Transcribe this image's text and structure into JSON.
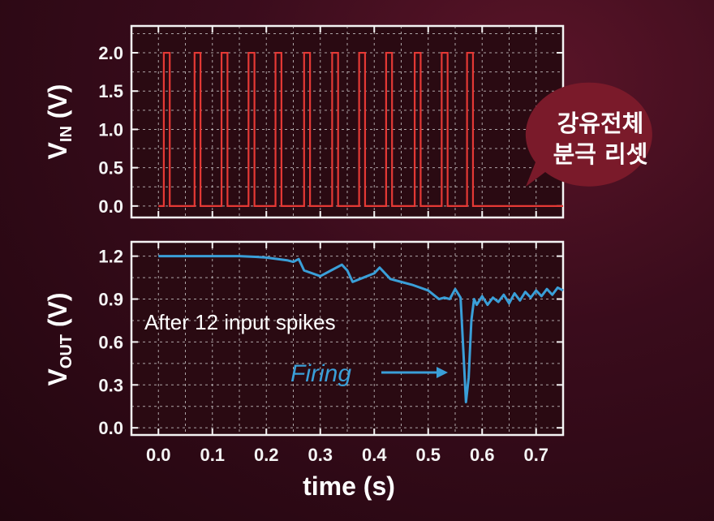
{
  "colors": {
    "vin_line": "#e53935",
    "vout_line": "#3a9fd8",
    "bubble": "#7a1a2a",
    "axis": "#f4f4f4"
  },
  "bubble": {
    "line1": "강유전체",
    "line2": "분극 리셋"
  },
  "chart_data": [
    {
      "type": "line",
      "xlabel": "",
      "ylabel_main": "V",
      "ylabel_sub": "IN",
      "ylabel_unit": " (V)",
      "xlim": [
        -0.05,
        0.75
      ],
      "ylim": [
        -0.15,
        2.35
      ],
      "yticks": [
        0.0,
        0.5,
        1.0,
        1.5,
        2.0
      ],
      "ytick_labels": [
        "0.0",
        "0.5",
        "1.0",
        "1.5",
        "2.0"
      ],
      "xticks": [
        0.0,
        0.1,
        0.2,
        0.3,
        0.4,
        0.5,
        0.6,
        0.7
      ],
      "grid": true,
      "pulse_height": 2.0,
      "pulse_width": 0.011,
      "pulse_starts": [
        0.01,
        0.067,
        0.117,
        0.167,
        0.217,
        0.27,
        0.322,
        0.372,
        0.422,
        0.475,
        0.525,
        0.572
      ],
      "baseline_end": 0.75,
      "series": [
        {
          "values": "12 rectangular pulses from 0 to 2.0 V"
        }
      ]
    },
    {
      "type": "line",
      "xlabel": "time (s)",
      "ylabel_main": "V",
      "ylabel_sub": "OUT",
      "ylabel_unit": " (V)",
      "xlim": [
        -0.05,
        0.75
      ],
      "ylim": [
        -0.05,
        1.3
      ],
      "yticks": [
        0.0,
        0.3,
        0.6,
        0.9,
        1.2
      ],
      "ytick_labels": [
        "0.0",
        "0.3",
        "0.6",
        "0.9",
        "1.2"
      ],
      "xticks": [
        0.0,
        0.1,
        0.2,
        0.3,
        0.4,
        0.5,
        0.6,
        0.7
      ],
      "xtick_labels": [
        "0.0",
        "0.1",
        "0.2",
        "0.3",
        "0.4",
        "0.5",
        "0.6",
        "0.7"
      ],
      "grid": true,
      "series": [
        {
          "x": [
            0.0,
            0.05,
            0.1,
            0.15,
            0.18,
            0.2,
            0.22,
            0.24,
            0.25,
            0.26,
            0.27,
            0.3,
            0.32,
            0.34,
            0.35,
            0.36,
            0.38,
            0.4,
            0.41,
            0.43,
            0.45,
            0.47,
            0.5,
            0.52,
            0.53,
            0.54,
            0.55,
            0.56,
            0.565,
            0.57,
            0.575,
            0.58,
            0.585,
            0.59,
            0.6,
            0.61,
            0.62,
            0.63,
            0.64,
            0.65,
            0.66,
            0.67,
            0.68,
            0.69,
            0.7,
            0.71,
            0.72,
            0.73,
            0.74,
            0.75
          ],
          "y": [
            1.2,
            1.2,
            1.2,
            1.2,
            1.195,
            1.19,
            1.18,
            1.17,
            1.16,
            1.18,
            1.1,
            1.06,
            1.1,
            1.14,
            1.1,
            1.02,
            1.05,
            1.08,
            1.12,
            1.04,
            1.02,
            1.0,
            0.96,
            0.9,
            0.91,
            0.9,
            0.97,
            0.91,
            0.55,
            0.18,
            0.35,
            0.75,
            0.9,
            0.86,
            0.92,
            0.86,
            0.91,
            0.88,
            0.93,
            0.87,
            0.94,
            0.89,
            0.95,
            0.91,
            0.96,
            0.92,
            0.97,
            0.93,
            0.98,
            0.96
          ]
        }
      ],
      "annotations": {
        "spikes_text": "After 12 input spikes",
        "firing_text": "Firing"
      }
    }
  ]
}
